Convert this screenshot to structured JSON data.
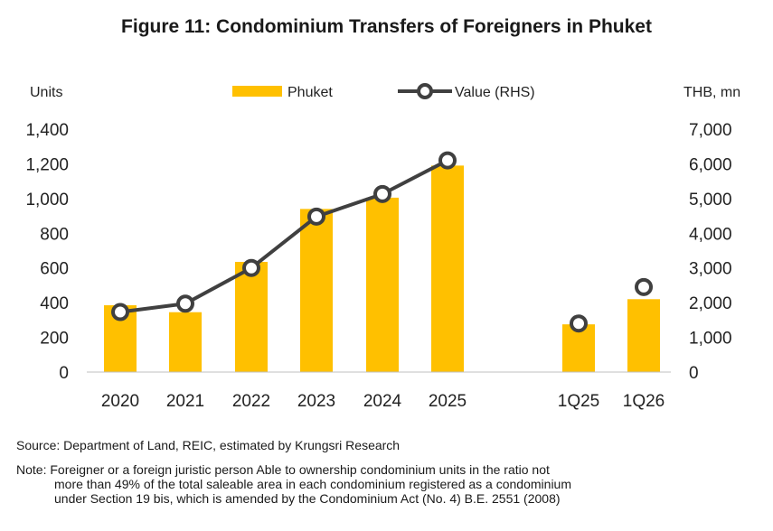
{
  "chart_data": {
    "type": "bar",
    "title": "Figure 11: Condominium Transfers of Foreigners in Phuket",
    "categories": [
      "2020",
      "2021",
      "2022",
      "2023",
      "2024",
      "2025",
      "1Q25",
      "1Q26"
    ],
    "ylabel_left": "Units",
    "ylabel_right": "THB, mn",
    "ylim_left": [
      0,
      1400
    ],
    "ylim_right": [
      0,
      7000
    ],
    "yticks_left": [
      "0",
      "200",
      "400",
      "600",
      "800",
      "1,000",
      "1,200",
      "1,400"
    ],
    "yticks_right": [
      "0",
      "1,000",
      "2,000",
      "3,000",
      "4,000",
      "5,000",
      "6,000",
      "7,000"
    ],
    "grid": false,
    "legend_position": "top-center",
    "series": [
      {
        "name": "Phuket",
        "type": "bar",
        "axis": "left",
        "color": "#FFC000",
        "values": [
          385,
          345,
          635,
          940,
          1005,
          1190,
          275,
          420
        ]
      },
      {
        "name": "Value (RHS)",
        "type": "line",
        "axis": "right",
        "color": "#404040",
        "values": [
          1730,
          1970,
          3000,
          4480,
          5130,
          6100,
          1400,
          2450
        ]
      }
    ]
  },
  "footer": {
    "source": "Source: Department of Land, REIC, estimated by Krungsri Research",
    "note_line1": "Note: Foreigner or a foreign juristic person Able to ownership condominium units in the ratio not",
    "note_line2": "more than 49% of the total saleable area in each condominium registered as a condominium",
    "note_line3": "under Section 19 bis, which is amended by the Condominium Act (No. 4) B.E. 2551 (2008)"
  }
}
